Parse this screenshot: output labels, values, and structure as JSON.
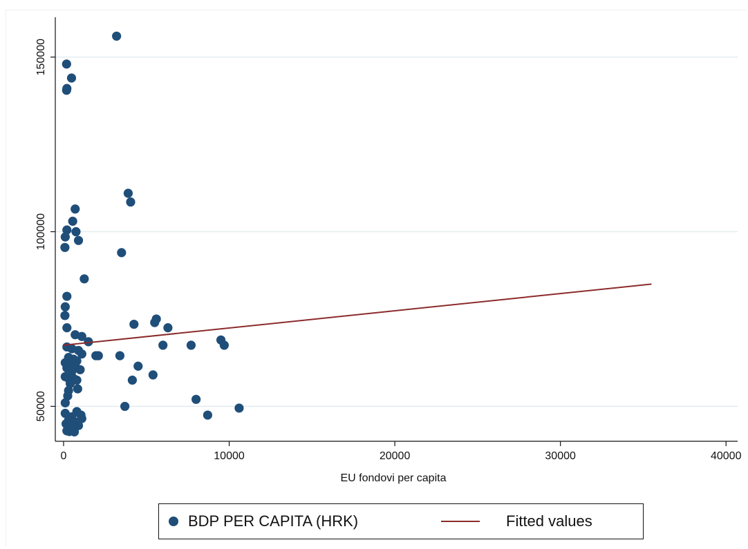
{
  "chart_data": {
    "type": "scatter",
    "title": "",
    "xlabel": "EU fondovi per capita",
    "ylabel": "",
    "xlim": [
      -500,
      40700
    ],
    "ylim": [
      40000,
      161000
    ],
    "xticks": [
      0,
      10000,
      20000,
      30000,
      40000
    ],
    "yticks": [
      50000,
      100000,
      150000
    ],
    "xtick_labels": [
      "0",
      "10000",
      "20000",
      "30000",
      "40000"
    ],
    "ytick_labels": [
      "50000",
      "100000",
      "150000"
    ],
    "grid": "horizontal",
    "legend_position": "bottom",
    "series": [
      {
        "name": "BDP PER CAPITA  (HRK)",
        "kind": "scatter",
        "color": "#1f4e79",
        "points": [
          [
            3200,
            156000
          ],
          [
            180,
            148000
          ],
          [
            480,
            144000
          ],
          [
            200,
            141000
          ],
          [
            180,
            140500
          ],
          [
            3900,
            111000
          ],
          [
            4050,
            108500
          ],
          [
            700,
            106500
          ],
          [
            550,
            103000
          ],
          [
            200,
            100500
          ],
          [
            750,
            100000
          ],
          [
            100,
            98500
          ],
          [
            900,
            97500
          ],
          [
            80,
            95500
          ],
          [
            3500,
            94000
          ],
          [
            1250,
            86500
          ],
          [
            200,
            81500
          ],
          [
            100,
            78500
          ],
          [
            80,
            76000
          ],
          [
            200,
            72500
          ],
          [
            5600,
            75000
          ],
          [
            5500,
            74000
          ],
          [
            4250,
            73500
          ],
          [
            6300,
            72500
          ],
          [
            700,
            70500
          ],
          [
            1100,
            70000
          ],
          [
            9500,
            69000
          ],
          [
            1500,
            68500
          ],
          [
            6000,
            67500
          ],
          [
            7700,
            67500
          ],
          [
            9700,
            67500
          ],
          [
            200,
            67000
          ],
          [
            500,
            66500
          ],
          [
            900,
            66000
          ],
          [
            1100,
            65000
          ],
          [
            1950,
            64500
          ],
          [
            2100,
            64500
          ],
          [
            3400,
            64500
          ],
          [
            300,
            64000
          ],
          [
            600,
            63500
          ],
          [
            800,
            63000
          ],
          [
            100,
            62500
          ],
          [
            400,
            62000
          ],
          [
            700,
            61500
          ],
          [
            4500,
            61500
          ],
          [
            200,
            61000
          ],
          [
            1000,
            60500
          ],
          [
            500,
            60000
          ],
          [
            5400,
            59000
          ],
          [
            100,
            58500
          ],
          [
            300,
            58000
          ],
          [
            600,
            58000
          ],
          [
            4150,
            57500
          ],
          [
            800,
            57500
          ],
          [
            400,
            56500
          ],
          [
            850,
            55000
          ],
          [
            300,
            54500
          ],
          [
            250,
            53000
          ],
          [
            8000,
            52000
          ],
          [
            100,
            51000
          ],
          [
            3700,
            50000
          ],
          [
            10600,
            49500
          ],
          [
            800,
            48500
          ],
          [
            100,
            48000
          ],
          [
            1050,
            47500
          ],
          [
            8700,
            47500
          ],
          [
            500,
            47000
          ],
          [
            1100,
            46500
          ],
          [
            300,
            46000
          ],
          [
            700,
            45500
          ],
          [
            150,
            45000
          ],
          [
            900,
            44500
          ],
          [
            400,
            44000
          ],
          [
            600,
            43500
          ],
          [
            200,
            43000
          ],
          [
            350,
            42800
          ],
          [
            650,
            42700
          ]
        ]
      },
      {
        "name": "Fitted values",
        "kind": "line",
        "color": "#8b2a2a",
        "points": [
          [
            0,
            67500
          ],
          [
            35500,
            85000
          ]
        ]
      }
    ]
  }
}
